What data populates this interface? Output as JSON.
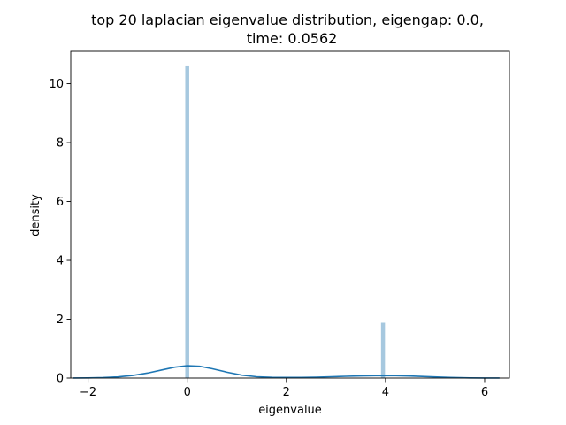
{
  "chart_data": {
    "type": "bar",
    "title_line1": "top 20 laplacian eigenvalue distribution, eigengap: 0.0,",
    "title_line2": "time: 0.0562",
    "xlabel": "eigenvalue",
    "ylabel": "density",
    "xlim": [
      -2.35,
      6.5
    ],
    "ylim": [
      0,
      11.1
    ],
    "xticks": [
      -2,
      0,
      2,
      4,
      6
    ],
    "xtick_labels": [
      "−2",
      "0",
      "2",
      "4",
      "6"
    ],
    "yticks": [
      0,
      2,
      4,
      6,
      8,
      10
    ],
    "ytick_labels": [
      "0",
      "2",
      "4",
      "6",
      "8",
      "10"
    ],
    "grid": false,
    "histogram": {
      "color": "#a6c8df",
      "bins": [
        {
          "x0": -0.04,
          "x1": 0.04,
          "density": 10.62
        },
        {
          "x0": 3.91,
          "x1": 3.99,
          "density": 1.88
        }
      ]
    },
    "kde": {
      "color": "#1f77b4",
      "x": [
        -2.3,
        -2.0,
        -1.7,
        -1.4,
        -1.1,
        -0.8,
        -0.5,
        -0.25,
        0.0,
        0.25,
        0.5,
        0.8,
        1.1,
        1.4,
        1.7,
        2.0,
        2.3,
        2.6,
        2.9,
        3.2,
        3.5,
        3.8,
        4.0,
        4.2,
        4.5,
        4.8,
        5.1,
        5.4,
        5.7,
        6.0,
        6.3
      ],
      "y": [
        0.002,
        0.006,
        0.016,
        0.04,
        0.088,
        0.17,
        0.28,
        0.37,
        0.42,
        0.4,
        0.32,
        0.2,
        0.1,
        0.045,
        0.025,
        0.02,
        0.022,
        0.03,
        0.045,
        0.06,
        0.072,
        0.08,
        0.082,
        0.08,
        0.07,
        0.05,
        0.032,
        0.016,
        0.007,
        0.003,
        0.001
      ]
    }
  }
}
